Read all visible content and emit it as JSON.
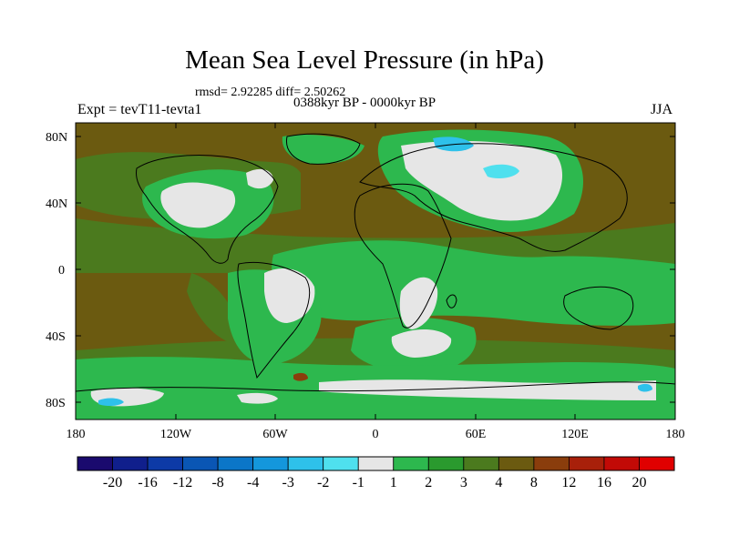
{
  "title": "Mean Sea Level Pressure (in hPa)",
  "rmsd_text": "rmsd= 2.92285 diff= 2.50262",
  "period": "0388kyr BP - 0000kyr BP",
  "experiment": "Expt = tevT11-tevta1",
  "season": "JJA",
  "lat_ticks": [
    "80N",
    "40N",
    "0",
    "40S",
    "80S"
  ],
  "lon_ticks": [
    "180",
    "120W",
    "60W",
    "0",
    "60E",
    "120E",
    "180"
  ],
  "colorbar": {
    "labels": [
      "-20",
      "-16",
      "-12",
      "-8",
      "-4",
      "-3",
      "-2",
      "-1",
      "1",
      "2",
      "3",
      "4",
      "8",
      "12",
      "16",
      "20"
    ],
    "colors": [
      "#1a0a6e",
      "#101f8c",
      "#0d3aa6",
      "#0a56b4",
      "#0b76c8",
      "#1497dc",
      "#2ec1ea",
      "#4fe0ee",
      "#e6e6e6",
      "#2db84e",
      "#2a9a2e",
      "#4b7a1e",
      "#6b5a10",
      "#8a3d0c",
      "#a8200a",
      "#c20a06",
      "#e00000"
    ]
  },
  "legend_colors": {
    "background": "#6b5a10",
    "ocean_mid": "#4b7a1e",
    "green": "#2db84e",
    "neutral": "#e6e6e6",
    "cyan": "#2ec1ea",
    "brown": "#8a3d0c"
  }
}
